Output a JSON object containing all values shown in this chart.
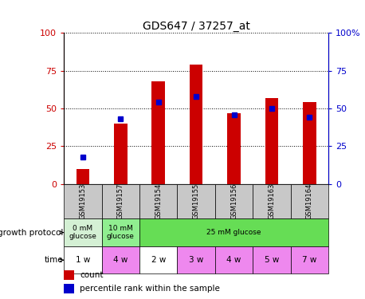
{
  "title": "GDS647 / 37257_at",
  "samples": [
    "GSM19153",
    "GSM19157",
    "GSM19154",
    "GSM19155",
    "GSM19156",
    "GSM19163",
    "GSM19164"
  ],
  "bar_heights": [
    10,
    40,
    68,
    79,
    47,
    57,
    54
  ],
  "dot_values": [
    18,
    43,
    54,
    58,
    46,
    50,
    44
  ],
  "bar_color": "#cc0000",
  "dot_color": "#0000cc",
  "ylim": [
    0,
    100
  ],
  "yticks": [
    0,
    25,
    50,
    75,
    100
  ],
  "ytick_labels_left": [
    "0",
    "25",
    "50",
    "75",
    "100"
  ],
  "ytick_labels_right": [
    "0",
    "25",
    "50",
    "75",
    "100%"
  ],
  "protocol_groups": [
    {
      "label": "0 mM\nglucose",
      "span": [
        0,
        1
      ],
      "color": "#d4f0d4"
    },
    {
      "label": "10 mM\nglucose",
      "span": [
        1,
        2
      ],
      "color": "#90ee90"
    },
    {
      "label": "25 mM glucose",
      "span": [
        2,
        7
      ],
      "color": "#66dd55"
    }
  ],
  "time_labels": [
    "1 w",
    "4 w",
    "2 w",
    "3 w",
    "4 w",
    "5 w",
    "7 w"
  ],
  "time_colors": [
    "#ffffff",
    "#ee88ee",
    "#ffffff",
    "#ee88ee",
    "#ee88ee",
    "#ee88ee",
    "#ee88ee"
  ],
  "sample_bg_color": "#c8c8c8",
  "legend_count_color": "#cc0000",
  "legend_dot_color": "#0000cc",
  "left_label_color": "#cc0000",
  "right_label_color": "#0000cc",
  "bar_width": 0.35
}
